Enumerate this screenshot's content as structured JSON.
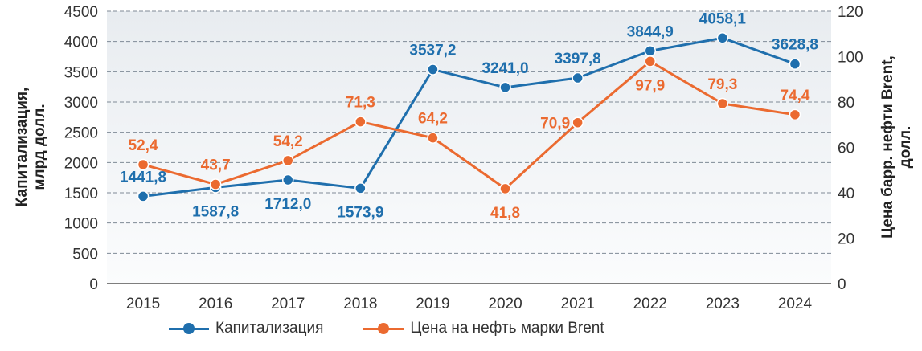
{
  "chart_data": {
    "type": "line",
    "categories": [
      "2015",
      "2016",
      "2017",
      "2018",
      "2019",
      "2020",
      "2021",
      "2022",
      "2023",
      "2024"
    ],
    "ylabel": "Капитализация,\nмлрд долл.",
    "y2label": "Цена барр. нефти Brent,\nдолл.",
    "ylim": [
      0,
      4500
    ],
    "yticks": [
      "0",
      "500",
      "1000",
      "1500",
      "2000",
      "2500",
      "3000",
      "3500",
      "4000",
      "4500"
    ],
    "y2lim": [
      0,
      120
    ],
    "y2ticks": [
      "0",
      "20",
      "40",
      "60",
      "80",
      "100",
      "120"
    ],
    "grid": true,
    "legend_position": "bottom",
    "series": [
      {
        "name": "Капитализация",
        "axis": "left",
        "color": "#1f6fad",
        "values": [
          1441.8,
          1587.8,
          1712.0,
          1573.9,
          3537.2,
          3241.0,
          3397.8,
          3844.9,
          4058.1,
          3628.8
        ],
        "labels": [
          "1441,8",
          "1587,8",
          "1712,0",
          "1573,9",
          "3537,2",
          "3241,0",
          "3397,8",
          "3844,9",
          "4058,1",
          "3628,8"
        ]
      },
      {
        "name": "Цена на нефть марки Brent",
        "axis": "right",
        "color": "#eb6a30",
        "values": [
          52.4,
          43.7,
          54.2,
          71.3,
          64.2,
          41.8,
          70.9,
          97.9,
          79.3,
          74.4
        ],
        "labels": [
          "52,4",
          "43,7",
          "54,2",
          "71,3",
          "64,2",
          "41,8",
          "70,9",
          "97,9",
          "79,3",
          "74,4"
        ]
      }
    ]
  }
}
